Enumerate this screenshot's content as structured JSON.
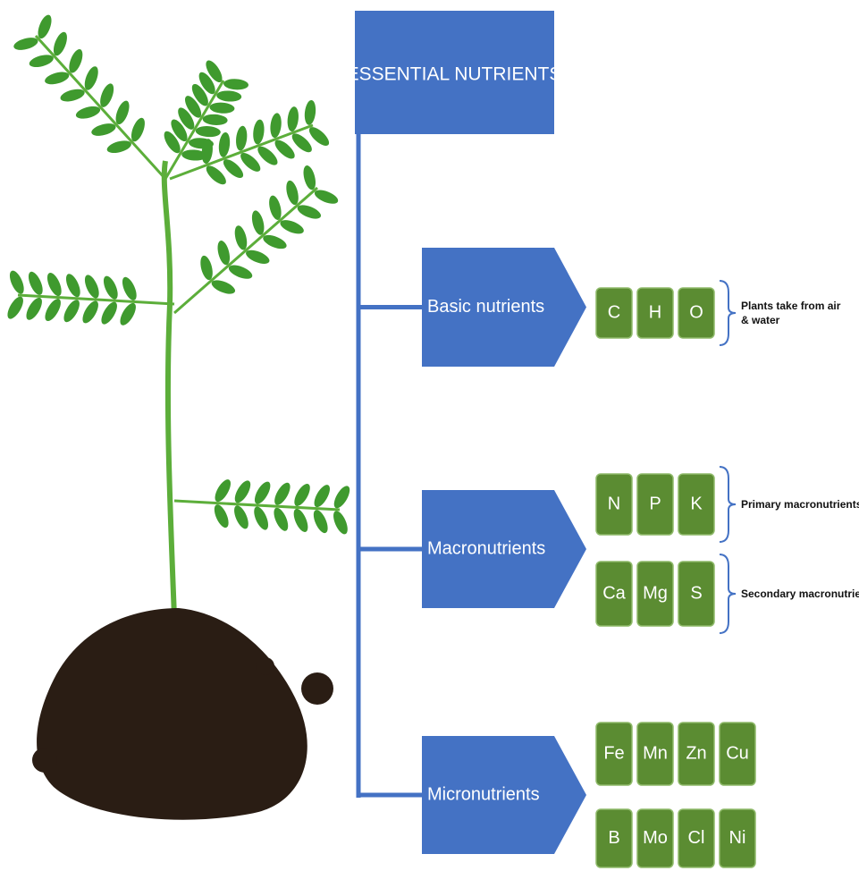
{
  "title": "ESSENTIAL NUTRIENTS",
  "groups": [
    {
      "label": "Basic nutrients",
      "rows": [
        [
          "C",
          "H",
          "O"
        ]
      ],
      "notes": [
        "Plants take from air & water"
      ]
    },
    {
      "label": "Macronutrients",
      "rows": [
        [
          "N",
          "P",
          "K"
        ],
        [
          "Ca",
          "Mg",
          "S"
        ]
      ],
      "notes": [
        "Primary macronutrients",
        "Secondary macronutrient"
      ]
    },
    {
      "label": "Micronutrients",
      "rows": [
        [
          "Fe",
          "Mn",
          "Zn",
          "Cu"
        ],
        [
          "B",
          "Mo",
          "Cl",
          "Ni"
        ]
      ],
      "notes": []
    }
  ]
}
